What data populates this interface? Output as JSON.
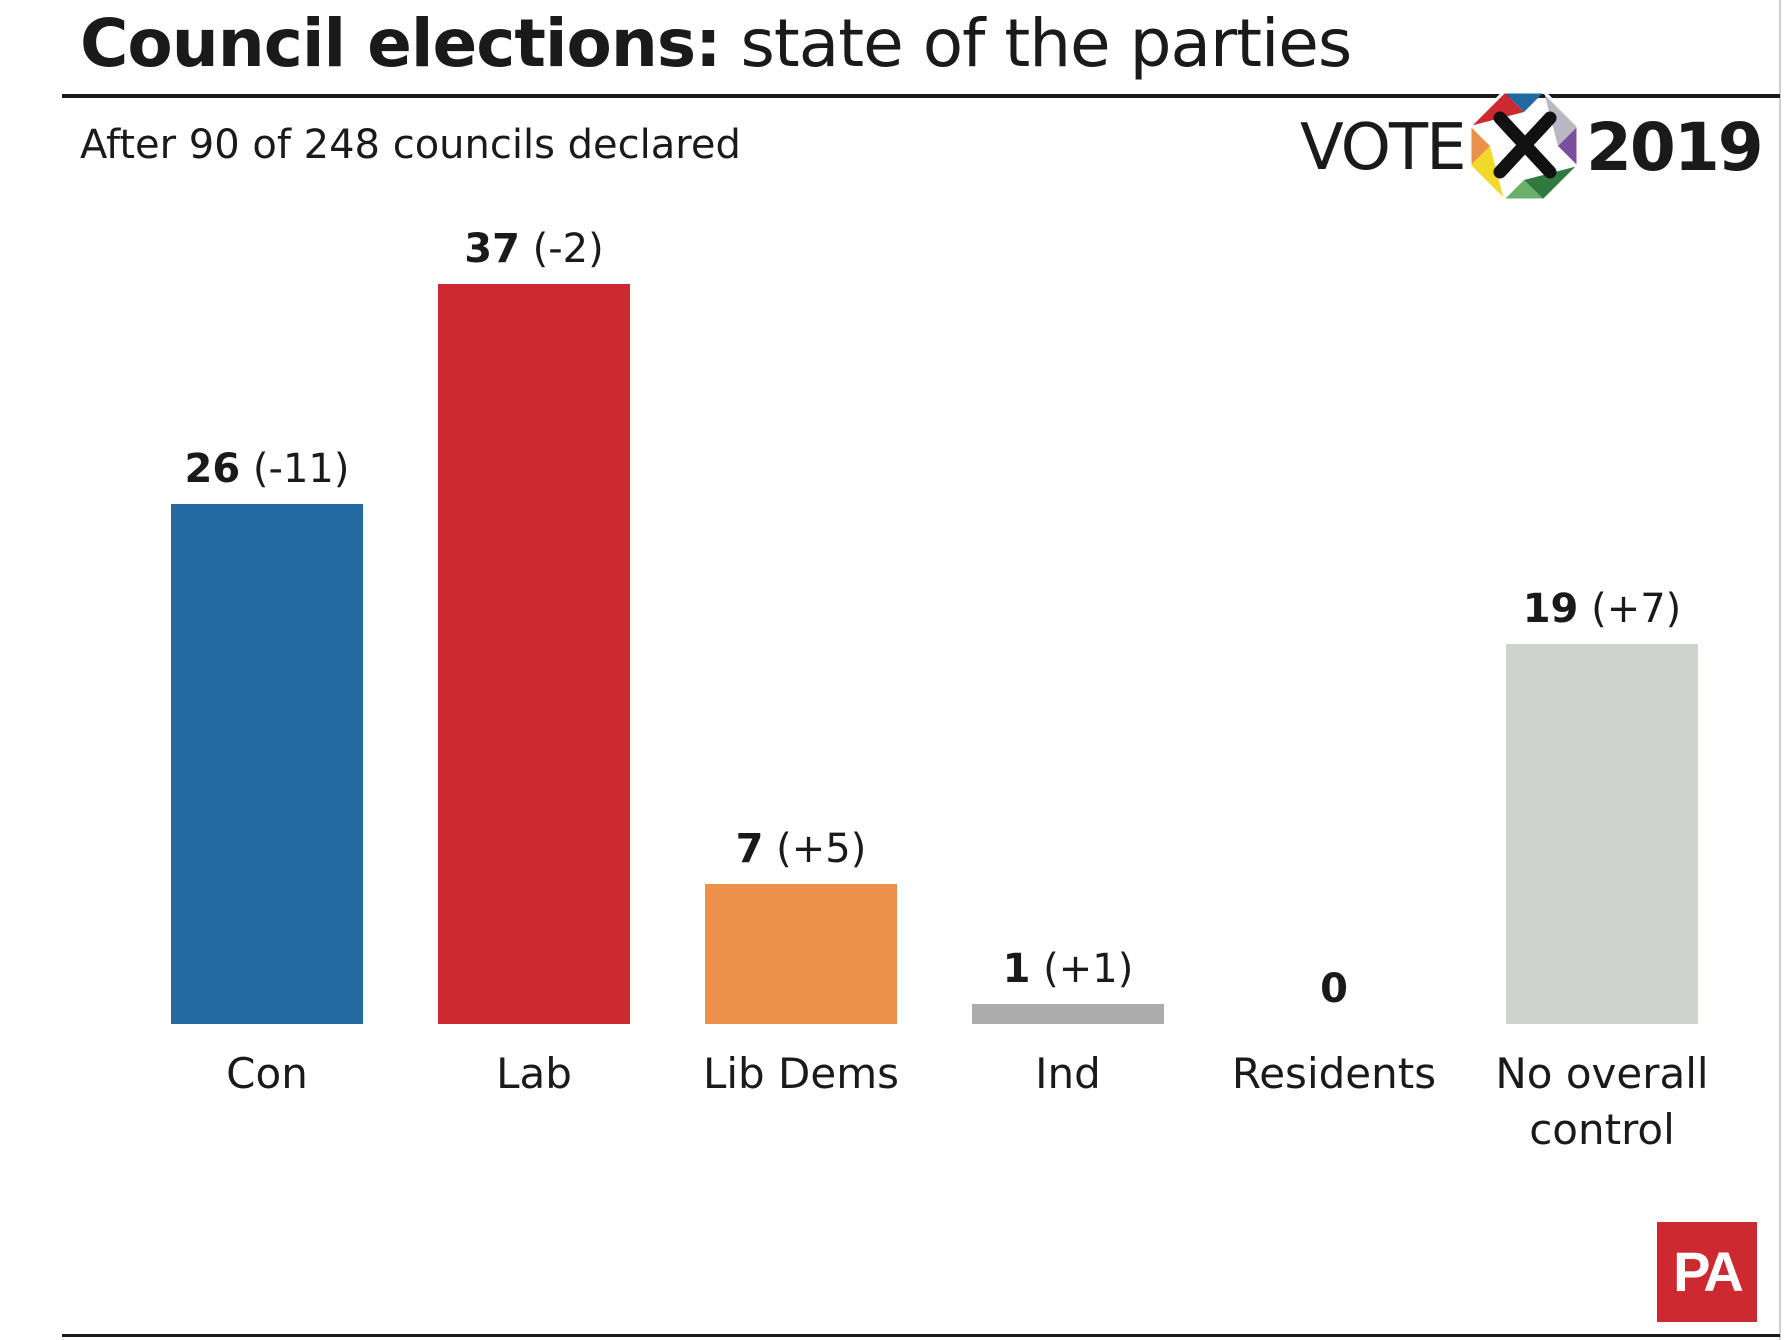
{
  "header": {
    "title_bold": "Council elections:",
    "title_rest": "state of the parties",
    "subtitle": "After 90 of 248 councils declared"
  },
  "logo": {
    "vote": "VOTE",
    "year": "2019",
    "icon": "ballot-cross-octagon-icon"
  },
  "footer": {
    "brand": "PA",
    "brand_color": "#cc2a30"
  },
  "chart_data": {
    "type": "bar",
    "title": "Council elections: state of the parties",
    "subtitle": "After 90 of 248 councils declared",
    "xlabel": "",
    "ylabel": "",
    "ylim": [
      0,
      37
    ],
    "grid": false,
    "legend": "none",
    "categories": [
      "Con",
      "Lab",
      "Lib Dems",
      "Ind",
      "Residents",
      "No overall control"
    ],
    "category_lines": [
      [
        "Con"
      ],
      [
        "Lab"
      ],
      [
        "Lib Dems"
      ],
      [
        "Ind"
      ],
      [
        "Residents"
      ],
      [
        "No overall",
        "control"
      ]
    ],
    "values": [
      26,
      37,
      7,
      1,
      0,
      19
    ],
    "changes": [
      "(-11)",
      "(-2)",
      "(+5)",
      "(+1)",
      "",
      "(+7)"
    ],
    "colors": [
      "#2268a2",
      "#cc2a30",
      "#ec914b",
      "#acacac",
      "#cccccc",
      "#d0d2cd"
    ]
  }
}
